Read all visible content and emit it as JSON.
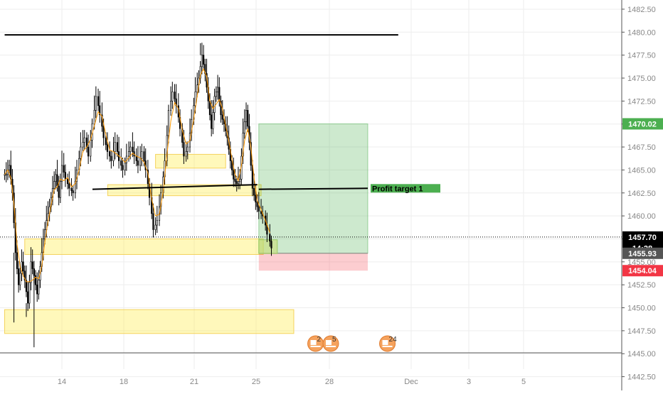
{
  "chart_data": {
    "type": "candlestick",
    "title": "",
    "xlabel": "",
    "ylabel": "",
    "ylim": [
      1441.0,
      1483.5
    ],
    "grid": true,
    "x_ticks": [
      "14",
      "18",
      "21",
      "25",
      "28",
      "Dec",
      "3",
      "5"
    ],
    "y_ticks": [
      "1482.50",
      "1480.00",
      "1477.50",
      "1475.00",
      "1472.50",
      "1470.00",
      "1467.50",
      "1465.00",
      "1462.50",
      "1460.00",
      "1457.50",
      "1455.00",
      "1452.50",
      "1450.00",
      "1447.50",
      "1445.00",
      "1442.50"
    ],
    "current_price": 1457.7,
    "countdown": "14:28",
    "price_tags": [
      {
        "label": "1470.02",
        "value": 1470.02,
        "color": "#4caf50"
      },
      {
        "label": "1457.70",
        "value": 1457.7,
        "color": "#000000"
      },
      {
        "label": "14:28",
        "value": 1456.5,
        "color": "#000000"
      },
      {
        "label": "1455.93",
        "value": 1455.93,
        "color": "#555555"
      },
      {
        "label": "1454.04",
        "value": 1454.04,
        "color": "#f23645"
      }
    ],
    "horizontal_lines": [
      {
        "from_day": 10.3,
        "to_day": 31.4,
        "start": 1479.7,
        "end": 1479.7
      }
    ],
    "trend_lines": [
      {
        "from_day": 15.6,
        "to_day": 24.9,
        "start": 1462.9,
        "end": 1463.4
      },
      {
        "from_day": 25.0,
        "to_day": 30.0,
        "start": 1462.9,
        "end": 1463.0
      }
    ],
    "zones": [
      {
        "from_day": 16.4,
        "to_day": 25.1,
        "low": 1462.2,
        "high": 1463.4
      },
      {
        "from_day": 18.9,
        "to_day": 22.9,
        "low": 1465.2,
        "high": 1466.7
      },
      {
        "from_day": 11.6,
        "to_day": 25.2,
        "low": 1455.8,
        "high": 1457.5
      },
      {
        "from_day": 10.3,
        "to_day": 26.6,
        "low": 1447.2,
        "high": 1449.8
      }
    ],
    "position": {
      "from_day": 25.0,
      "to_day": 30.0,
      "entry": 1455.93,
      "take_profit": 1470.02,
      "stop_loss": 1454.04,
      "label": "Profit target 1",
      "label_value": 1463.0
    },
    "event_badges": [
      {
        "day": 27.6,
        "label": "2"
      },
      {
        "day": 28.3,
        "label": "5"
      },
      {
        "day": 30.9,
        "label": "24"
      }
    ],
    "candles": [
      {
        "day": 10.3,
        "value": 1464.5
      },
      {
        "day": 10.5,
        "value": 1465.5
      },
      {
        "day": 10.7,
        "value": 1462.5
      },
      {
        "day": 10.9,
        "value": 1456.0
      },
      {
        "day": 11.1,
        "value": 1452.5
      },
      {
        "day": 11.3,
        "value": 1455.0
      },
      {
        "day": 11.5,
        "value": 1453.0
      },
      {
        "day": 11.7,
        "value": 1450.5
      },
      {
        "day": 11.9,
        "value": 1455.0
      },
      {
        "day": 12.1,
        "value": 1453.5
      },
      {
        "day": 12.3,
        "value": 1451.5
      },
      {
        "day": 12.5,
        "value": 1454.5
      },
      {
        "day": 12.7,
        "value": 1457.5
      },
      {
        "day": 12.9,
        "value": 1459.5
      },
      {
        "day": 13.1,
        "value": 1461.0
      },
      {
        "day": 13.3,
        "value": 1463.0
      },
      {
        "day": 13.5,
        "value": 1464.5
      },
      {
        "day": 13.7,
        "value": 1462.0
      },
      {
        "day": 13.9,
        "value": 1465.5
      },
      {
        "day": 14.1,
        "value": 1464.0
      },
      {
        "day": 14.3,
        "value": 1463.0
      },
      {
        "day": 14.5,
        "value": 1462.5
      },
      {
        "day": 14.7,
        "value": 1465.0
      },
      {
        "day": 14.9,
        "value": 1467.5
      },
      {
        "day": 15.1,
        "value": 1468.5
      },
      {
        "day": 15.3,
        "value": 1466.5
      },
      {
        "day": 15.5,
        "value": 1470.0
      },
      {
        "day": 15.7,
        "value": 1473.0
      },
      {
        "day": 15.9,
        "value": 1471.0
      },
      {
        "day": 16.1,
        "value": 1468.5
      },
      {
        "day": 16.3,
        "value": 1467.0
      },
      {
        "day": 16.5,
        "value": 1466.0
      },
      {
        "day": 16.7,
        "value": 1468.0
      },
      {
        "day": 16.9,
        "value": 1466.0
      },
      {
        "day": 17.1,
        "value": 1465.0
      },
      {
        "day": 17.3,
        "value": 1466.5
      },
      {
        "day": 17.5,
        "value": 1467.5
      },
      {
        "day": 17.7,
        "value": 1466.5
      },
      {
        "day": 17.9,
        "value": 1465.5
      },
      {
        "day": 18.1,
        "value": 1467.0
      },
      {
        "day": 18.3,
        "value": 1465.0
      },
      {
        "day": 18.5,
        "value": 1462.0
      },
      {
        "day": 18.7,
        "value": 1458.5
      },
      {
        "day": 18.9,
        "value": 1459.5
      },
      {
        "day": 19.1,
        "value": 1462.5
      },
      {
        "day": 19.3,
        "value": 1466.0
      },
      {
        "day": 19.5,
        "value": 1471.5
      },
      {
        "day": 19.7,
        "value": 1473.5
      },
      {
        "day": 19.9,
        "value": 1472.0
      },
      {
        "day": 20.1,
        "value": 1469.5
      },
      {
        "day": 20.3,
        "value": 1466.5
      },
      {
        "day": 20.5,
        "value": 1467.5
      },
      {
        "day": 20.7,
        "value": 1470.5
      },
      {
        "day": 20.9,
        "value": 1473.5
      },
      {
        "day": 21.1,
        "value": 1475.0
      },
      {
        "day": 21.3,
        "value": 1477.5
      },
      {
        "day": 21.5,
        "value": 1475.5
      },
      {
        "day": 21.7,
        "value": 1472.5
      },
      {
        "day": 21.9,
        "value": 1469.5
      },
      {
        "day": 22.1,
        "value": 1473.0
      },
      {
        "day": 22.3,
        "value": 1474.0
      },
      {
        "day": 22.5,
        "value": 1471.0
      },
      {
        "day": 22.7,
        "value": 1470.0
      },
      {
        "day": 22.9,
        "value": 1468.5
      },
      {
        "day": 23.1,
        "value": 1466.0
      },
      {
        "day": 23.3,
        "value": 1464.0
      },
      {
        "day": 23.5,
        "value": 1463.5
      },
      {
        "day": 23.7,
        "value": 1464.0
      },
      {
        "day": 23.9,
        "value": 1469.0
      },
      {
        "day": 24.1,
        "value": 1471.5
      },
      {
        "day": 24.3,
        "value": 1468.0
      },
      {
        "day": 24.5,
        "value": 1463.0
      },
      {
        "day": 24.7,
        "value": 1461.5
      },
      {
        "day": 24.9,
        "value": 1460.5
      },
      {
        "day": 25.1,
        "value": 1460.0
      },
      {
        "day": 25.3,
        "value": 1458.0
      },
      {
        "day": 25.5,
        "value": 1456.5
      }
    ]
  }
}
